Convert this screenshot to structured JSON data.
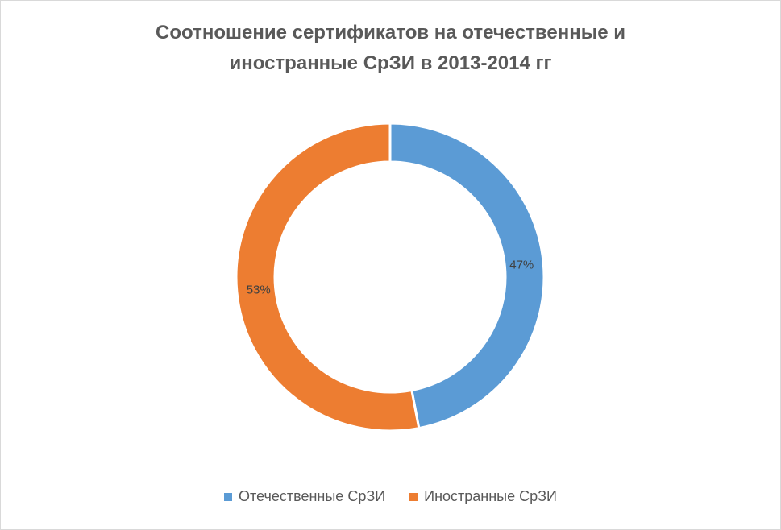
{
  "chart_data": {
    "type": "pie",
    "variant": "doughnut",
    "title_lines": [
      "Соотношение сертификатов на отечественные и",
      "иностранные СрЗИ в 2013-2014 гг"
    ],
    "series": [
      {
        "name": "Отечественные СрЗИ",
        "value": 47,
        "label": "47%",
        "color": "#5b9bd5"
      },
      {
        "name": "Иностранные СрЗИ",
        "value": 53,
        "label": "53%",
        "color": "#ed7d31"
      }
    ],
    "legend_position": "bottom"
  }
}
